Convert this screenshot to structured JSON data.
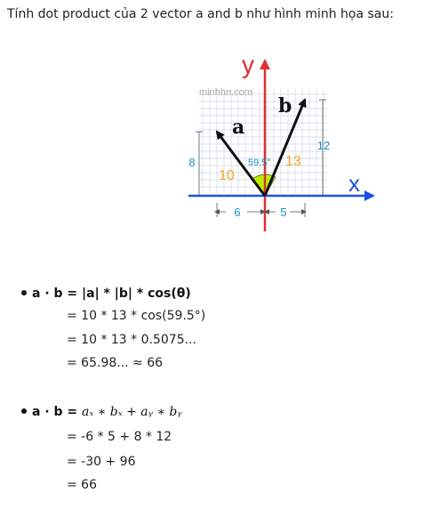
{
  "intro": "Tính dot product của 2 vector a and b như hình minh họa sau:",
  "figure": {
    "watermark": "minhhn.com",
    "axis_y_label": "y",
    "axis_x_label": "x",
    "vec_a_label": "a",
    "vec_b_label": "b",
    "len_a": "10",
    "len_b": "13",
    "angle_label": "59.5°",
    "ay_label": "8",
    "by_label": "12",
    "ax_label": "6",
    "bx_label": "5",
    "colors": {
      "axis_y": "#e03030",
      "axis_x": "#1e50e6",
      "vector": "#111111",
      "length": "#f5a623",
      "component": "#1a8fc9",
      "angle_fill": "#b8f000",
      "grid": "#cfd8e6"
    }
  },
  "calc1": {
    "formula": "a · b = |a| * |b| * cos(θ)",
    "step1": "= 10 * 13 * cos(59.5°)",
    "step2": "= 10 * 13 * 0.5075...",
    "step3": "= 65.98... ≈ 66"
  },
  "calc2": {
    "formula_prefix": "a · b =",
    "formula_math": "aₓ ∗ bₓ + aᵧ ∗ bᵧ",
    "step1": "= -6 * 5 + 8 * 12",
    "step2": "= -30 + 96",
    "step3": "= 66"
  }
}
